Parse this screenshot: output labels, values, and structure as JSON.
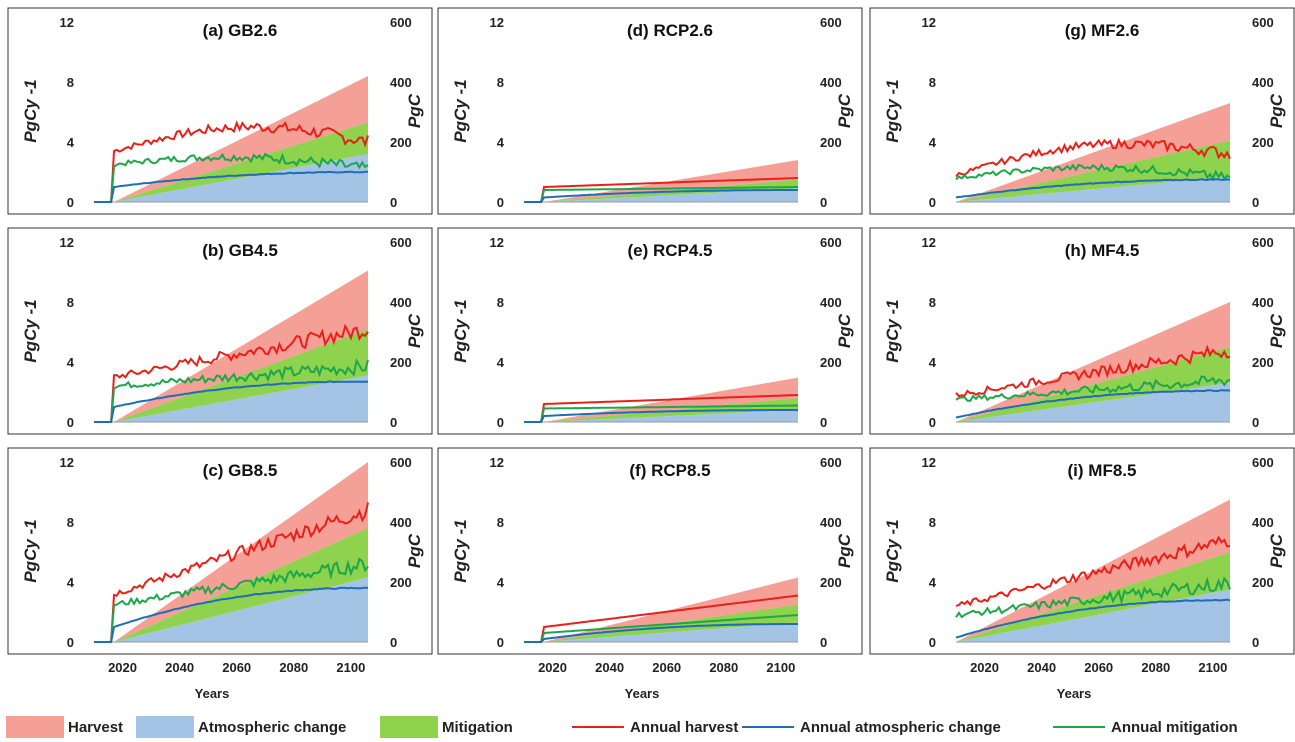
{
  "colors": {
    "harvest_area": "#f4a096",
    "atmospheric_area": "#a4c4e6",
    "mitigation_area": "#8ed24e",
    "annual_harvest": "#e8201a",
    "annual_atmospheric": "#1f6db5",
    "annual_mitigation": "#1ea64a"
  },
  "legend": {
    "harvest": "Harvest",
    "atmospheric": "Atmospheric change",
    "mitigation": "Mitigation",
    "annual_harvest": "Annual harvest",
    "annual_atmospheric": "Annual atmospheric change",
    "annual_mitigation": "Annual mitigation"
  },
  "xlabel": "Years",
  "ylabel_left": "PgCy -1",
  "ylabel_right": "PgC",
  "x_ticks": [
    2020,
    2040,
    2060,
    2080,
    2100
  ],
  "y_ticks_left": [
    0,
    4,
    8,
    12
  ],
  "y_ticks_right": [
    0,
    200,
    400,
    600
  ],
  "chart_data": [
    {
      "type": "line",
      "title": "(a) GB2.6",
      "xlim": [
        2010,
        2106
      ],
      "ylim_left": [
        0,
        12
      ],
      "ylim_right": [
        0,
        600
      ],
      "start_year": 2017,
      "cumulative_end": {
        "atmospheric": 160,
        "mitigation": 265,
        "harvest": 420
      },
      "annual": {
        "harvest": {
          "start": 3.4,
          "end": 4.0,
          "amp": 0.3,
          "peak": 5.0
        },
        "atmospheric": {
          "start": 1.0,
          "end": 2.0,
          "amp": 0.02
        },
        "mitigation": {
          "start": 2.5,
          "end": 2.2,
          "amp": 0.25,
          "peak": 3.0
        }
      }
    },
    {
      "type": "line",
      "title": "(b) GB4.5",
      "xlim": [
        2010,
        2106
      ],
      "ylim_left": [
        0,
        12
      ],
      "ylim_right": [
        0,
        600
      ],
      "start_year": 2017,
      "cumulative_end": {
        "atmospheric": 155,
        "mitigation": 310,
        "harvest": 505
      },
      "annual": {
        "harvest": {
          "start": 3.0,
          "end": 6.2,
          "amp": 0.35
        },
        "atmospheric": {
          "start": 1.0,
          "end": 2.7,
          "amp": 0.02
        },
        "mitigation": {
          "start": 2.4,
          "end": 3.7,
          "amp": 0.3
        }
      }
    },
    {
      "type": "line",
      "title": "(c) GB8.5",
      "xlim": [
        2010,
        2106
      ],
      "ylim_left": [
        0,
        12
      ],
      "ylim_right": [
        0,
        600
      ],
      "start_year": 2017,
      "cumulative_end": {
        "atmospheric": 215,
        "mitigation": 380,
        "harvest": 600
      },
      "annual": {
        "harvest": {
          "start": 3.2,
          "end": 8.8,
          "amp": 0.35
        },
        "atmospheric": {
          "start": 1.0,
          "end": 3.6,
          "amp": 0.02
        },
        "mitigation": {
          "start": 2.5,
          "end": 5.2,
          "amp": 0.3
        }
      }
    },
    {
      "type": "line",
      "title": "(d) RCP2.6",
      "xlim": [
        2010,
        2106
      ],
      "ylim_left": [
        0,
        12
      ],
      "ylim_right": [
        0,
        600
      ],
      "start_year": 2017,
      "cumulative_end": {
        "atmospheric": 45,
        "mitigation": 75,
        "harvest": 140
      },
      "annual": {
        "harvest": {
          "start": 1.0,
          "end": 1.6,
          "amp": 0
        },
        "atmospheric": {
          "start": 0.3,
          "end": 0.8,
          "amp": 0
        },
        "mitigation": {
          "start": 0.8,
          "end": 1.0,
          "amp": 0
        }
      }
    },
    {
      "type": "line",
      "title": "(e) RCP4.5",
      "xlim": [
        2010,
        2106
      ],
      "ylim_left": [
        0,
        12
      ],
      "ylim_right": [
        0,
        600
      ],
      "start_year": 2017,
      "cumulative_end": {
        "atmospheric": 40,
        "mitigation": 80,
        "harvest": 148
      },
      "annual": {
        "harvest": {
          "start": 1.2,
          "end": 1.8,
          "amp": 0
        },
        "atmospheric": {
          "start": 0.4,
          "end": 0.8,
          "amp": 0
        },
        "mitigation": {
          "start": 0.9,
          "end": 1.1,
          "amp": 0
        }
      }
    },
    {
      "type": "line",
      "title": "(f) RCP8.5",
      "xlim": [
        2010,
        2106
      ],
      "ylim_left": [
        0,
        12
      ],
      "ylim_right": [
        0,
        600
      ],
      "start_year": 2017,
      "cumulative_end": {
        "atmospheric": 65,
        "mitigation": 125,
        "harvest": 215
      },
      "annual": {
        "harvest": {
          "start": 1.0,
          "end": 3.1,
          "amp": 0
        },
        "atmospheric": {
          "start": 0.2,
          "end": 1.2,
          "amp": 0
        },
        "mitigation": {
          "start": 0.6,
          "end": 1.8,
          "amp": 0
        }
      }
    },
    {
      "type": "line",
      "title": "(g) MF2.6",
      "xlim": [
        2010,
        2106
      ],
      "ylim_left": [
        0,
        12
      ],
      "ylim_right": [
        0,
        600
      ],
      "start_year": 2010,
      "cumulative_end": {
        "atmospheric": 85,
        "mitigation": 205,
        "harvest": 330
      },
      "annual": {
        "harvest": {
          "start": 1.8,
          "end": 3.2,
          "amp": 0.25,
          "peak": 3.8
        },
        "atmospheric": {
          "start": 0.3,
          "end": 1.5,
          "amp": 0.02
        },
        "mitigation": {
          "start": 1.6,
          "end": 1.6,
          "amp": 0.2,
          "peak": 2.3
        }
      }
    },
    {
      "type": "line",
      "title": "(h) MF4.5",
      "xlim": [
        2010,
        2106
      ],
      "ylim_left": [
        0,
        12
      ],
      "ylim_right": [
        0,
        600
      ],
      "start_year": 2010,
      "cumulative_end": {
        "atmospheric": 130,
        "mitigation": 250,
        "harvest": 400
      },
      "annual": {
        "harvest": {
          "start": 1.8,
          "end": 4.8,
          "amp": 0.3
        },
        "atmospheric": {
          "start": 0.3,
          "end": 2.1,
          "amp": 0.02
        },
        "mitigation": {
          "start": 1.5,
          "end": 2.8,
          "amp": 0.25
        }
      }
    },
    {
      "type": "line",
      "title": "(i) MF8.5",
      "xlim": [
        2010,
        2106
      ],
      "ylim_left": [
        0,
        12
      ],
      "ylim_right": [
        0,
        600
      ],
      "start_year": 2010,
      "cumulative_end": {
        "atmospheric": 175,
        "mitigation": 300,
        "harvest": 475
      },
      "annual": {
        "harvest": {
          "start": 2.4,
          "end": 6.8,
          "amp": 0.3
        },
        "atmospheric": {
          "start": 0.3,
          "end": 2.8,
          "amp": 0.02
        },
        "mitigation": {
          "start": 1.8,
          "end": 3.9,
          "amp": 0.3
        }
      }
    }
  ]
}
